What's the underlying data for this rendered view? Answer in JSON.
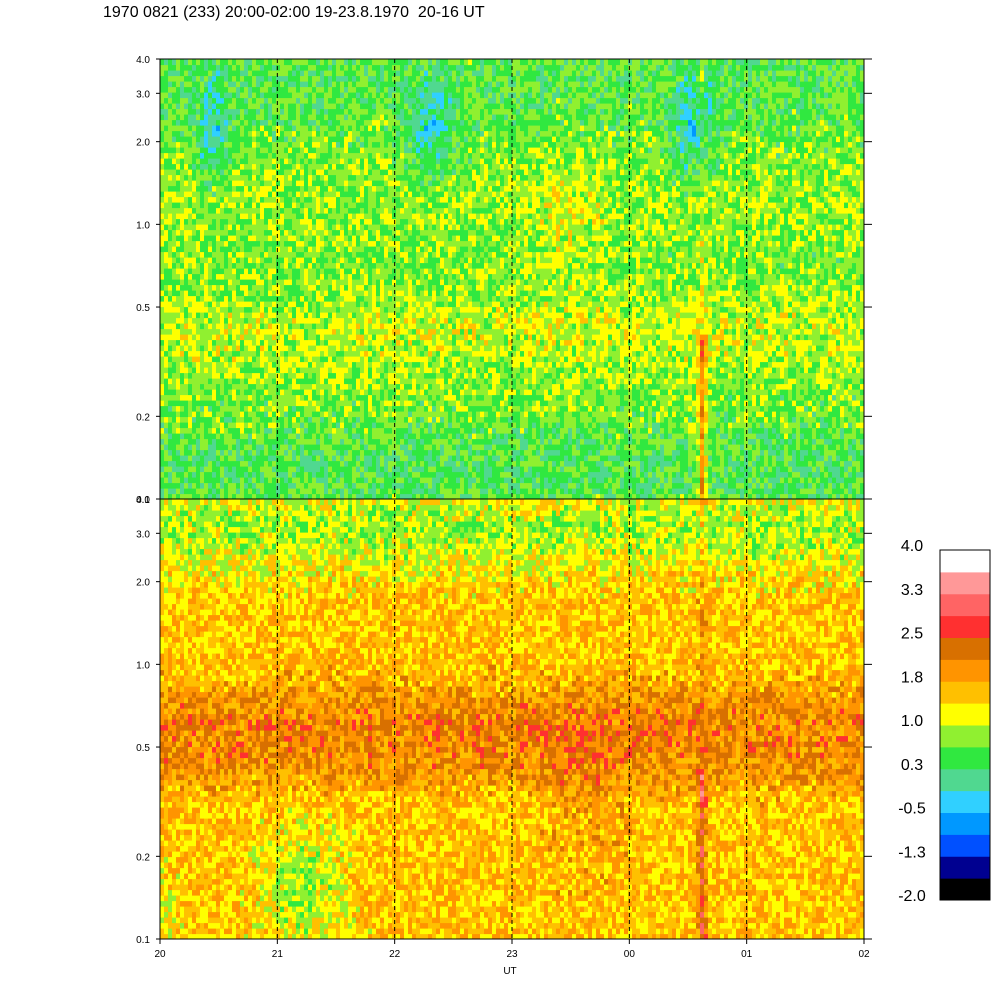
{
  "title": "1970 0821 (233) 20:00-02:00 19-23.8.1970  20-16 UT",
  "chart_data": {
    "type": "heatmap",
    "title": "1970 0821 (233) 20:00-02:00 19-23.8.1970  20-16 UT",
    "xlabel": "UT",
    "ylabel": "",
    "x_tick_labels": [
      "20",
      "21",
      "22",
      "23",
      "00",
      "01",
      "02"
    ],
    "x_range_hours": [
      20,
      26
    ],
    "y_scale": "log",
    "y_range": [
      0.1,
      4.0
    ],
    "y_ticks": [
      0.1,
      0.2,
      0.5,
      1.0,
      2.0,
      3.0,
      4.0
    ],
    "y_tick_labels": [
      "0.1",
      "0.2",
      "0.5",
      "1.0",
      "2.0",
      "3.0",
      "4.0"
    ],
    "vertical_dashed_lines_at": [
      "21",
      "22",
      "23",
      "00",
      "01"
    ],
    "panels": [
      {
        "description": "upper spectrogram panel",
        "dominant_levels": [
          0.3,
          1.0
        ],
        "features": [
          "blue/cyan patches (about -0.5) near 2-3 around 20.4, 22.3 and 00.6 UT",
          "yellow bands around 0.3-0.5",
          "orange/red vertical streak near 00.6-00.7 UT below 0.3"
        ]
      },
      {
        "description": "lower spectrogram panel",
        "dominant_levels": [
          1.8,
          2.5
        ],
        "features": [
          "dark orange band (about 2.5) around 0.5-0.8",
          "yellow region at low values near 21 UT",
          "red vertical streak near 00.6-00.7 UT"
        ]
      }
    ],
    "colorbar": {
      "labels": [
        "4.0",
        "3.3",
        "2.5",
        "1.8",
        "1.0",
        "0.3",
        "-0.5",
        "-1.3",
        "-2.0"
      ],
      "colors": [
        "#000000",
        "#000090",
        "#0050ff",
        "#0098ff",
        "#30d0ff",
        "#50d890",
        "#30e840",
        "#90f030",
        "#ffff00",
        "#ffc000",
        "#ff9400",
        "#d87000",
        "#ff3030",
        "#ff6464",
        "#ff9898",
        "#ffffff"
      ]
    }
  }
}
